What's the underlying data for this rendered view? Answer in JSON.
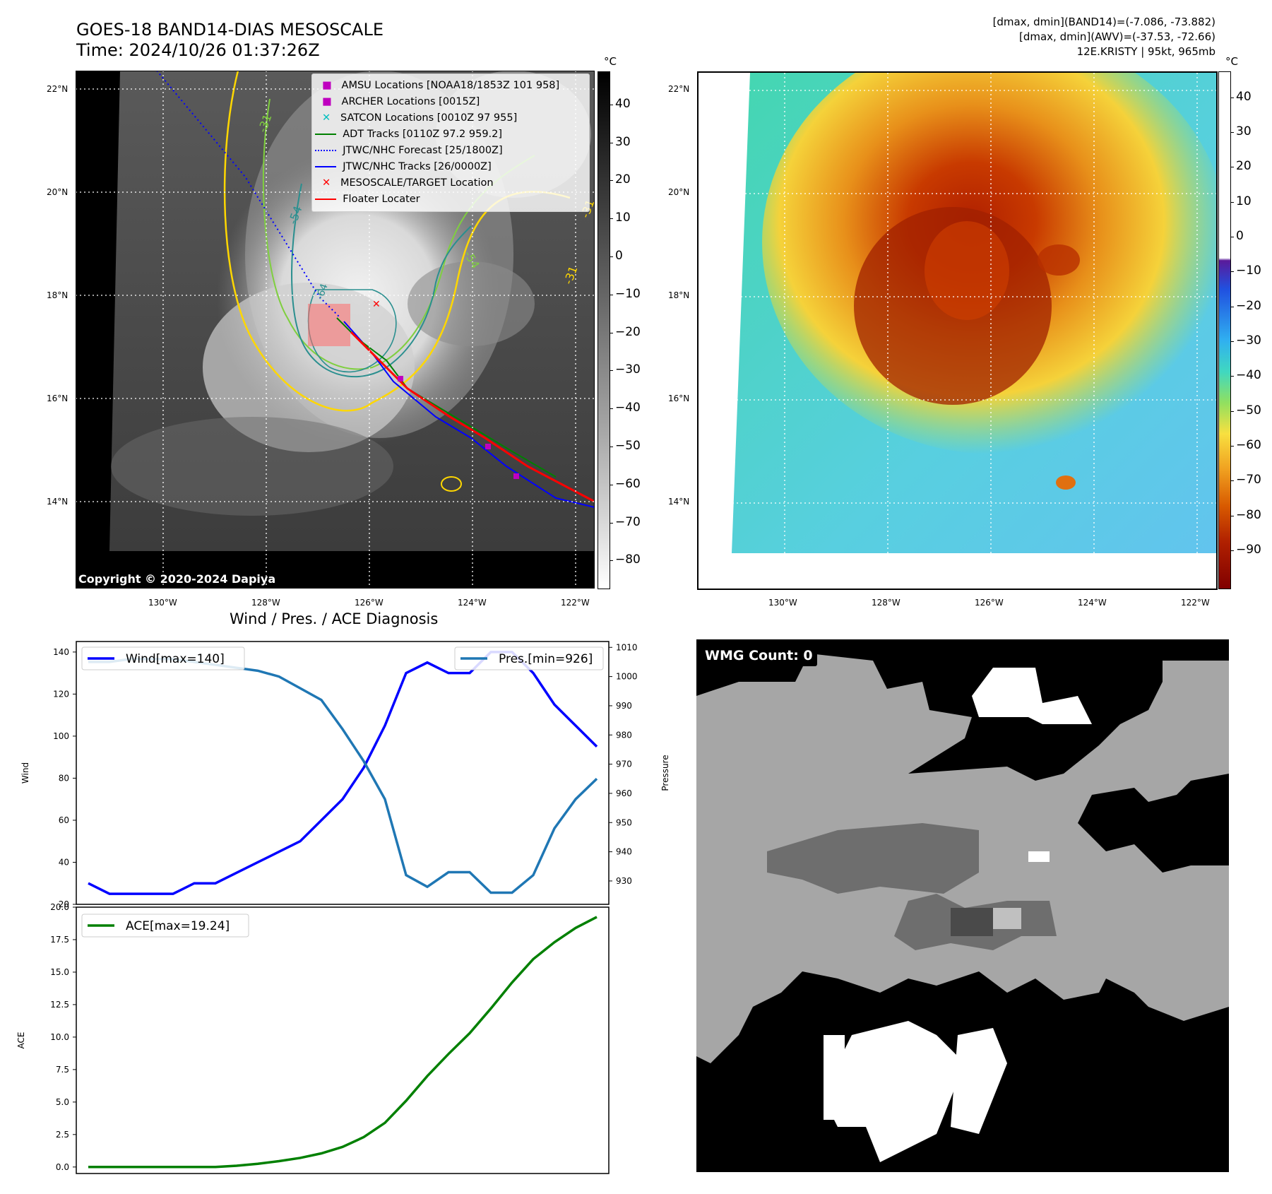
{
  "header": {
    "title_line1": "GOES-18 BAND14-DIAS MESOSCALE",
    "title_line2": "Time: 2024/10/26 01:37:26Z",
    "right_line1": "[dmax, dmin](BAND14)=(-7.086, -73.882)",
    "right_line2": "[dmax, dmin](AWV)=(-37.53, -72.66)",
    "right_line3": "12E.KRISTY | 95kt, 965mb"
  },
  "map": {
    "lat_labels": [
      "22°N",
      "20°N",
      "18°N",
      "16°N",
      "14°N"
    ],
    "lon_labels": [
      "130°W",
      "128°W",
      "126°W",
      "124°W",
      "122°W"
    ],
    "copyright": "Copyright © 2020-2024 Dapiya",
    "contour_labels": [
      "-31",
      "-54",
      "-64",
      "-54",
      "-31",
      "-31"
    ],
    "legend": [
      {
        "label": "AMSU Locations [NOAA18/1853Z 101 958]",
        "color": "#bf00bf",
        "marker": "square"
      },
      {
        "label": "ARCHER Locations [0015Z]",
        "color": "#bf00bf",
        "marker": "square"
      },
      {
        "label": "SATCON Locations [0010Z 97 955]",
        "color": "#00bfbf",
        "marker": "x"
      },
      {
        "label": "ADT Tracks [0110Z 97.2 959.2]",
        "color": "#008000",
        "marker": "line"
      },
      {
        "label": "JTWC/NHC Forecast [25/1800Z]",
        "color": "#0000ff",
        "marker": "dotted"
      },
      {
        "label": "JTWC/NHC Tracks [26/0000Z]",
        "color": "#0000ff",
        "marker": "line-dot"
      },
      {
        "label": "MESOSCALE/TARGET Location",
        "color": "#ff0000",
        "marker": "x"
      },
      {
        "label": "Floater Locater",
        "color": "#ff0000",
        "marker": "line"
      }
    ]
  },
  "colorbar_gray": {
    "unit": "°C",
    "ticks": [
      "40",
      "30",
      "20",
      "10",
      "0",
      "−10",
      "−20",
      "−30",
      "−40",
      "−50",
      "−60",
      "−70",
      "−80"
    ]
  },
  "colorbar_color": {
    "unit": "°C",
    "ticks": [
      "40",
      "30",
      "20",
      "10",
      "0",
      "−10",
      "−20",
      "−30",
      "−40",
      "−50",
      "−60",
      "−70",
      "−80",
      "−90"
    ]
  },
  "wmg": {
    "label": "WMG Count: 0"
  },
  "chart_data": [
    {
      "type": "line",
      "title": "Wind / Pres. / ACE Diagnosis",
      "xlabel": "",
      "ylabel": "Wind",
      "ylabel_right": "Pressure",
      "ylim": [
        20,
        145
      ],
      "ylim_right": [
        922,
        1012
      ],
      "yticks": [
        20,
        40,
        60,
        80,
        100,
        120,
        140
      ],
      "yticks_right": [
        930,
        940,
        950,
        960,
        970,
        980,
        990,
        1000,
        1010
      ],
      "x": [
        0,
        1,
        2,
        3,
        4,
        5,
        6,
        7,
        8,
        9,
        10,
        11,
        12,
        13,
        14,
        15,
        16,
        17,
        18,
        19,
        20,
        21,
        22,
        23,
        24
      ],
      "series": [
        {
          "name": "Wind[max=140]",
          "axis": "left",
          "color": "#0000ff",
          "values": [
            30,
            25,
            25,
            25,
            25,
            30,
            30,
            35,
            40,
            45,
            50,
            60,
            70,
            85,
            105,
            130,
            135,
            130,
            130,
            140,
            140,
            130,
            115,
            105,
            95
          ]
        },
        {
          "name": "Pres.[min=926]",
          "axis": "right",
          "color": "#1f77b4",
          "values": [
            1005,
            1005,
            1006,
            1006,
            1006,
            1005,
            1004,
            1003,
            1002,
            1000,
            996,
            992,
            982,
            971,
            958,
            932,
            928,
            933,
            933,
            926,
            926,
            932,
            948,
            958,
            965
          ]
        }
      ]
    },
    {
      "type": "line",
      "title": "",
      "xlabel": "",
      "ylabel": "ACE",
      "ylim": [
        -0.5,
        20
      ],
      "yticks": [
        0.0,
        2.5,
        5.0,
        7.5,
        10.0,
        12.5,
        15.0,
        17.5,
        20.0
      ],
      "ytick_labels": [
        "0.0",
        "2.5",
        "5.0",
        "7.5",
        "10.0",
        "12.5",
        "15.0",
        "17.5",
        "20.0"
      ],
      "x": [
        0,
        1,
        2,
        3,
        4,
        5,
        6,
        7,
        8,
        9,
        10,
        11,
        12,
        13,
        14,
        15,
        16,
        17,
        18,
        19,
        20,
        21,
        22,
        23,
        24
      ],
      "series": [
        {
          "name": "ACE[max=19.24]",
          "color": "#008000",
          "values": [
            0,
            0,
            0,
            0,
            0,
            0,
            0,
            0.1,
            0.25,
            0.45,
            0.7,
            1.05,
            1.55,
            2.3,
            3.4,
            5.1,
            7.0,
            8.7,
            10.3,
            12.2,
            14.2,
            16.0,
            17.3,
            18.4,
            19.24
          ]
        }
      ]
    }
  ]
}
